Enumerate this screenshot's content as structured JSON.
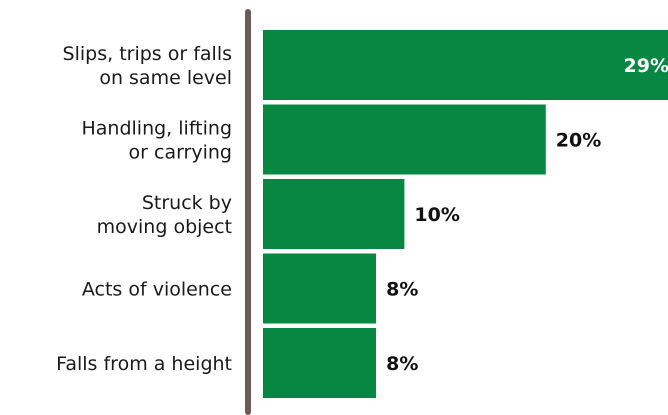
{
  "chart_data": {
    "type": "bar",
    "orientation": "horizontal",
    "categories": [
      "Slips, trips or falls on same level",
      "Handling, lifting or carrying",
      "Struck by moving object",
      "Acts of violence",
      "Falls from a height"
    ],
    "category_lines": [
      [
        "Slips, trips or falls",
        "on same level"
      ],
      [
        "Handling, lifting",
        "or carrying"
      ],
      [
        "Struck by",
        "moving object"
      ],
      [
        "Acts of violence"
      ],
      [
        "Falls from a height"
      ]
    ],
    "values": [
      29,
      20,
      10,
      8,
      8
    ],
    "value_labels": [
      "29%",
      "20%",
      "10%",
      "8%",
      "8%"
    ],
    "title": "",
    "xlabel": "",
    "ylabel": "",
    "grid": false,
    "legend": "none",
    "colors": {
      "bar": "#078742",
      "axis": "#6b5a55",
      "label_inside": "#ffffff",
      "label_outside": "#111111"
    }
  }
}
